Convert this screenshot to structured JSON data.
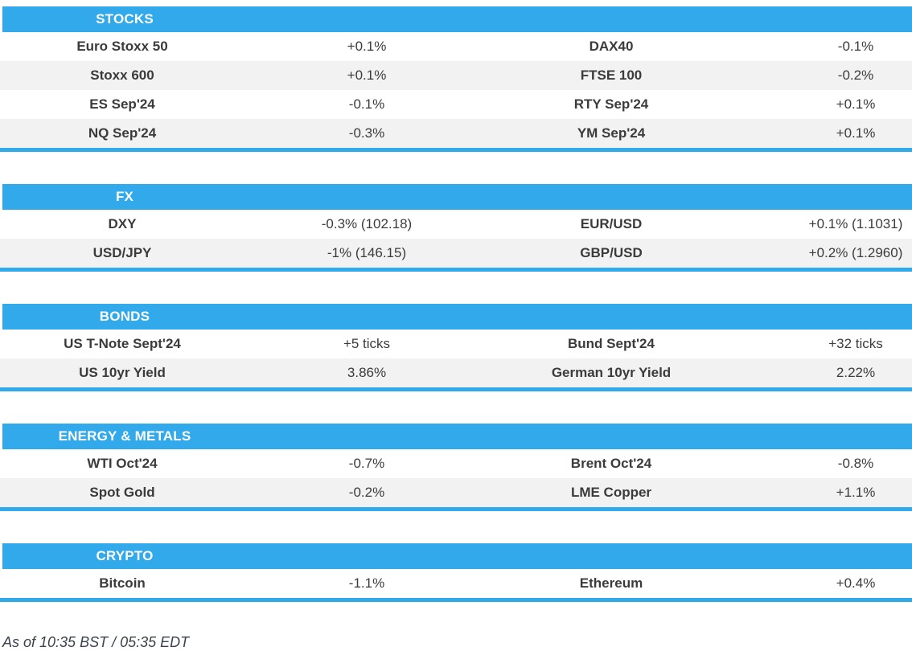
{
  "theme": {
    "accent": "#31a9ea",
    "row_alt": "#f2f2f2",
    "text": "#3b3b3b",
    "header_text": "#ffffff",
    "footer_text": "#3a424c"
  },
  "sections": [
    {
      "title": "STOCKS",
      "rows": [
        [
          "Euro Stoxx 50",
          "+0.1%",
          "DAX40",
          "-0.1%"
        ],
        [
          "Stoxx 600",
          "+0.1%",
          "FTSE 100",
          "-0.2%"
        ],
        [
          "ES Sep'24",
          "-0.1%",
          "RTY Sep'24",
          "+0.1%"
        ],
        [
          "NQ Sep'24",
          "-0.3%",
          "YM Sep'24",
          "+0.1%"
        ]
      ]
    },
    {
      "title": "FX",
      "rows": [
        [
          "DXY",
          "-0.3% (102.18)",
          "EUR/USD",
          "+0.1% (1.1031)"
        ],
        [
          "USD/JPY",
          "-1% (146.15)",
          "GBP/USD",
          "+0.2% (1.2960)"
        ]
      ]
    },
    {
      "title": "BONDS",
      "rows": [
        [
          "US T-Note Sept'24",
          "+5 ticks",
          "Bund Sept'24",
          "+32 ticks"
        ],
        [
          "US 10yr Yield",
          "3.86%",
          "German 10yr Yield",
          "2.22%"
        ]
      ]
    },
    {
      "title": "ENERGY & METALS",
      "rows": [
        [
          "WTI Oct'24",
          "-0.7%",
          "Brent Oct'24",
          "-0.8%"
        ],
        [
          "Spot Gold",
          "-0.2%",
          "LME Copper",
          "+1.1%"
        ]
      ]
    },
    {
      "title": "CRYPTO",
      "rows": [
        [
          "Bitcoin",
          "-1.1%",
          "Ethereum",
          "+0.4%"
        ]
      ]
    }
  ],
  "footer": {
    "as_of": "As of 10:35 BST / 05:35 EDT"
  }
}
